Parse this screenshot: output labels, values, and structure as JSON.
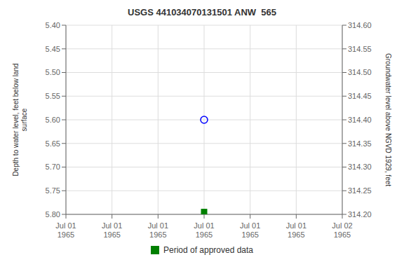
{
  "chart_data": {
    "type": "scatter",
    "title": "USGS 441034070131501 ANW  565",
    "ylabel": "Depth to water level, feet below land\nsurface",
    "y2label": "Groundwater level above NGVD 1929, feet",
    "categories": [
      "Jul 01\n1965",
      "Jul 01\n1965",
      "Jul 01\n1965",
      "Jul 01\n1965",
      "Jul 01\n1965",
      "Jul 01\n1965",
      "Jul 02\n1965"
    ],
    "series": [
      {
        "values": [
          null,
          null,
          null,
          5.6,
          null,
          null,
          null
        ],
        "color": "blue",
        "marker": "open_circle"
      },
      {
        "name": "Period of approved data",
        "values": [
          null,
          null,
          null,
          5.795,
          null,
          null,
          null
        ],
        "color": "#008000",
        "marker": "square"
      }
    ],
    "ylim": [
      5.8,
      5.4
    ],
    "yticks": [
      {
        "value": 5.4,
        "label": "5.40"
      },
      5.45,
      {
        "value": 5.5,
        "label": "5.50"
      },
      5.55,
      {
        "value": 5.6,
        "label": "5.60"
      },
      5.65,
      {
        "value": 5.7,
        "label": "5.70"
      },
      5.75,
      {
        "value": 5.8,
        "label": "5.80"
      }
    ],
    "y2lim": [
      314.2,
      314.6
    ],
    "y2ticks": [
      {
        "value": 314.2,
        "label": "314.20"
      },
      314.25,
      {
        "value": 314.3,
        "label": "314.30"
      },
      314.35,
      {
        "value": 314.4,
        "label": "314.40"
      },
      314.45,
      {
        "value": 314.5,
        "label": "314.50"
      },
      314.55,
      {
        "value": 314.6,
        "label": "314.60"
      }
    ],
    "grid": true,
    "legend": "bottom"
  }
}
